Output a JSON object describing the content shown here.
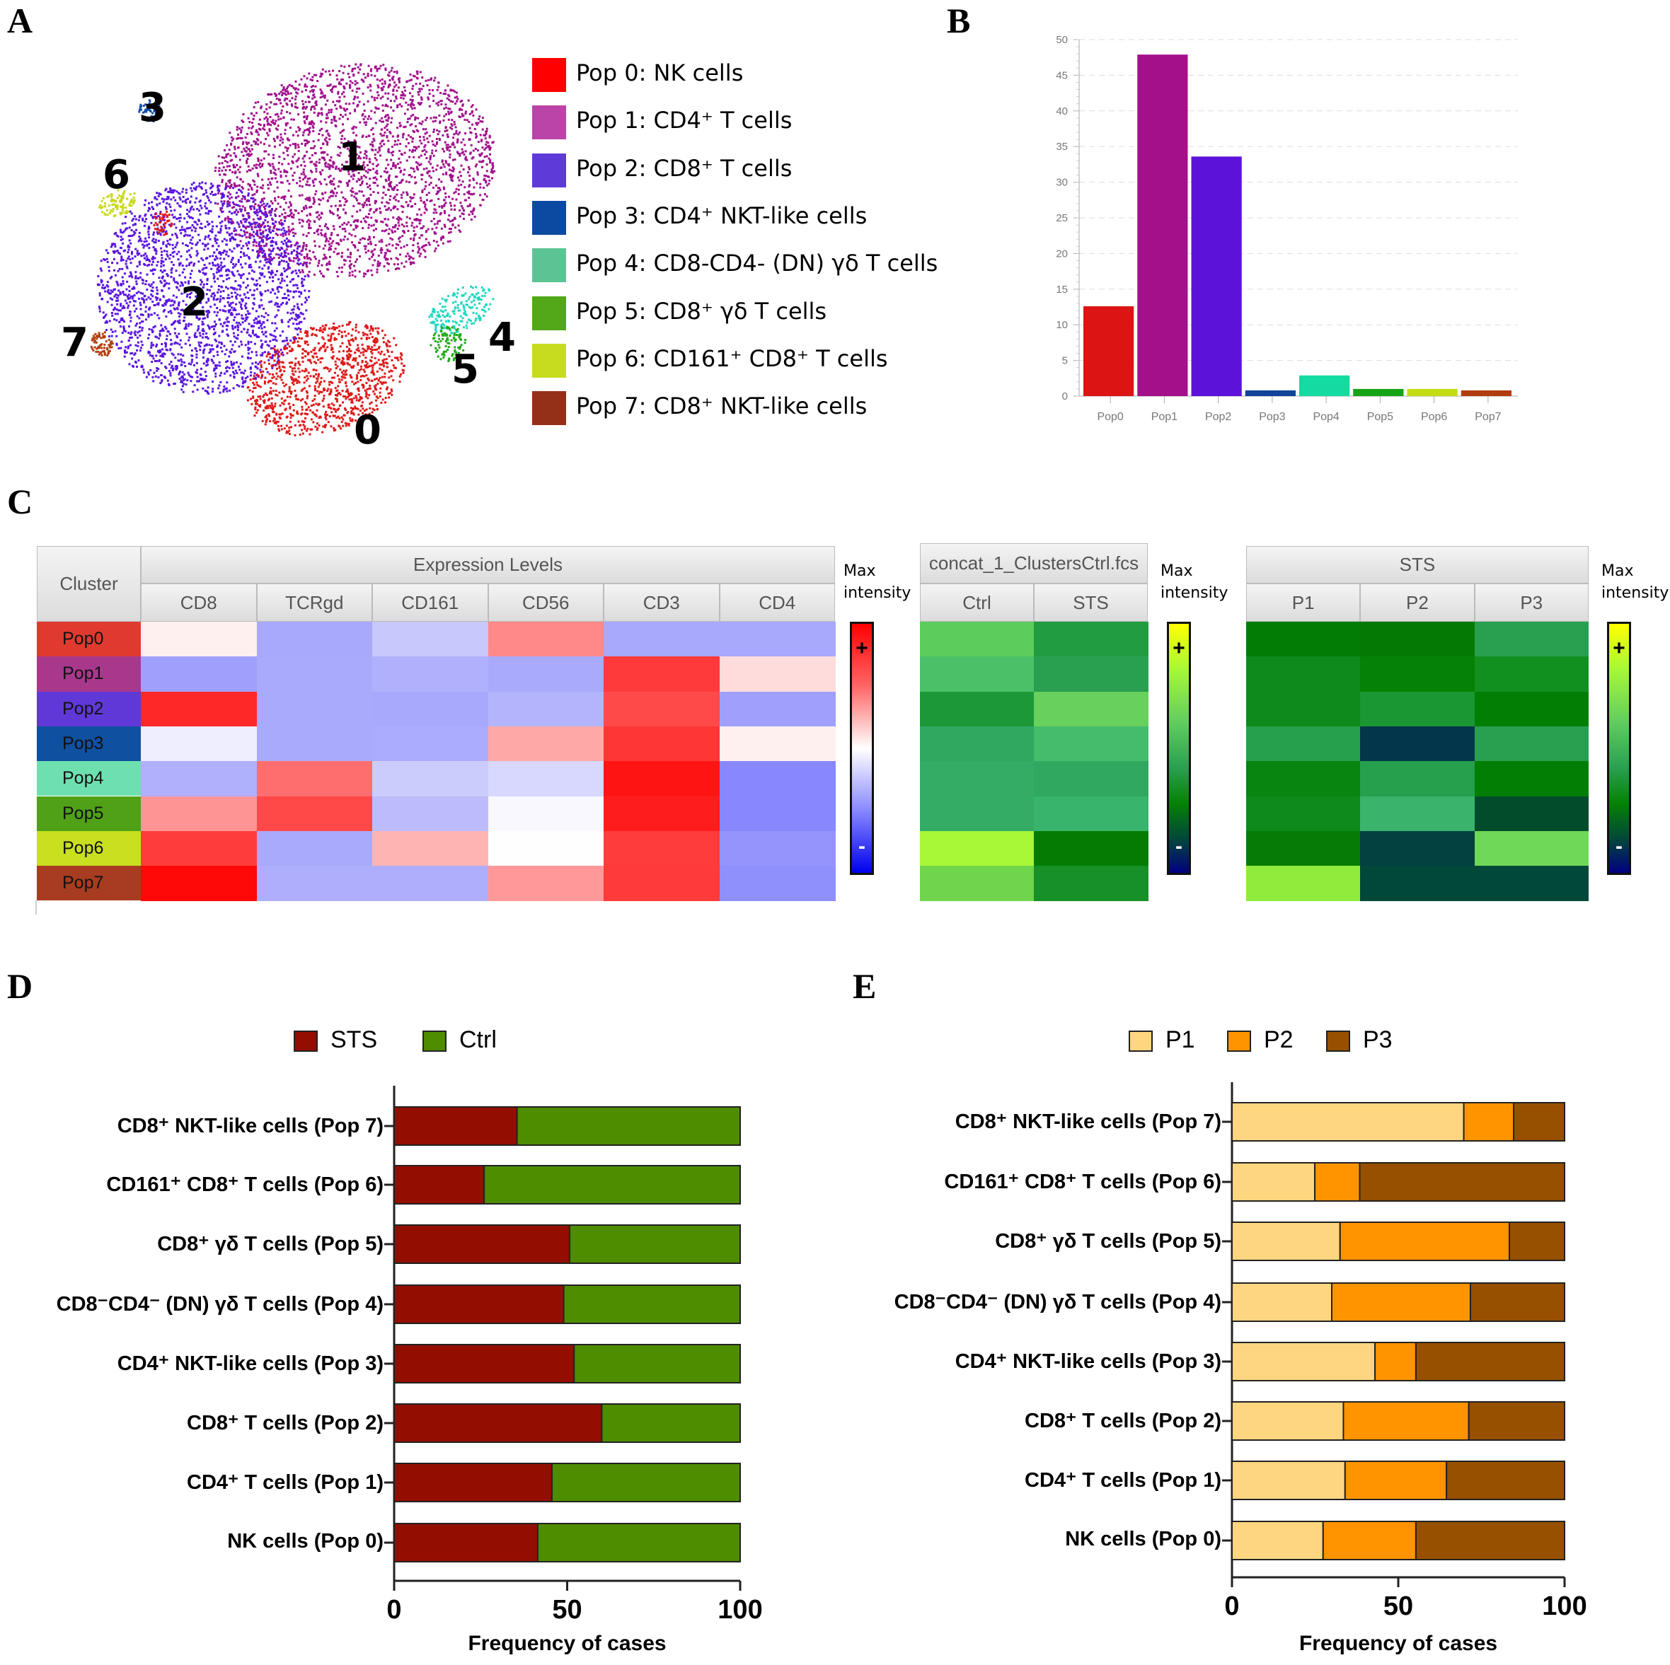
{
  "panels": {
    "a": "A",
    "b": "B",
    "c": "C",
    "d": "D",
    "e": "E"
  },
  "tsne": {
    "labels": [
      "0",
      "1",
      "2",
      "3",
      "4",
      "5",
      "6",
      "7"
    ],
    "legend": [
      {
        "label": "Pop 0: NK cells",
        "color": "#ff0000"
      },
      {
        "label": "Pop 1: CD4⁺ T cells",
        "color": "#bb44a8"
      },
      {
        "label": "Pop 2: CD8⁺ T cells",
        "color": "#5e3bd8"
      },
      {
        "label": "Pop 3: CD4⁺ NKT-like cells",
        "color": "#0b4aa0"
      },
      {
        "label": "Pop 4: CD8-CD4- (DN) γδ T cells",
        "color": "#5cc494"
      },
      {
        "label": "Pop 5: CD8⁺ γδ T cells",
        "color": "#52a818"
      },
      {
        "label": "Pop 6: CD161⁺ CD8⁺ T cells",
        "color": "#c6dc1e"
      },
      {
        "label": "Pop 7: CD8⁺ NKT-like cells",
        "color": "#943018"
      }
    ],
    "plot_colors": [
      "#e01818",
      "#a0108c",
      "#5a14e0",
      "#1450a8",
      "#20d8c0",
      "#20a818",
      "#c8d818",
      "#b04010"
    ]
  },
  "chart_data": [
    {
      "id": "B",
      "type": "bar",
      "title": "",
      "xlabel": "",
      "ylabel": "",
      "categories": [
        "Pop0",
        "Pop1",
        "Pop2",
        "Pop3",
        "Pop4",
        "Pop5",
        "Pop6",
        "Pop7"
      ],
      "values": [
        12.6,
        47.9,
        33.6,
        0.8,
        2.9,
        1.0,
        1.0,
        0.8
      ],
      "colors": [
        "#dc1414",
        "#a4108a",
        "#5c12d8",
        "#10449c",
        "#14dca0",
        "#16a416",
        "#c4dc14",
        "#b03c10"
      ],
      "ylim": [
        0,
        50
      ],
      "yticks": [
        "0",
        "5",
        "10",
        "15",
        "20",
        "25",
        "30",
        "35",
        "40",
        "45",
        "50"
      ],
      "grid": true
    },
    {
      "id": "D",
      "type": "bar",
      "orientation": "horizontal",
      "stacked": true,
      "categories": [
        "CD8⁺ NKT-like cells (Pop 7)",
        "CD161⁺ CD8⁺ T cells (Pop 6)",
        "CD8⁺ γδ T cells (Pop 5)",
        "CD8⁻CD4⁻ (DN) γδ T cells (Pop 4)",
        "CD4⁺ NKT-like cells (Pop 3)",
        "CD8⁺ T cells (Pop 2)",
        "CD4⁺ T cells (Pop 1)",
        "NK cells (Pop 0)"
      ],
      "series": [
        {
          "name": "STS",
          "color": "#940e00",
          "values": [
            35.5,
            26,
            50.7,
            49,
            52,
            60,
            45.6,
            41.5
          ]
        },
        {
          "name": "Ctrl",
          "color": "#4e8c00",
          "values": [
            64.5,
            74,
            49.3,
            51,
            48,
            40,
            54.4,
            58.5
          ]
        }
      ],
      "xlabel": "Frequency of cases",
      "xlim": [
        0,
        100
      ],
      "xticks": [
        "0",
        "50",
        "100"
      ],
      "legend": "top"
    },
    {
      "id": "E",
      "type": "bar",
      "orientation": "horizontal",
      "stacked": true,
      "categories": [
        "CD8⁺ NKT-like cells (Pop 7)",
        "CD161⁺ CD8⁺ T cells (Pop 6)",
        "CD8⁺ γδ T cells (Pop 5)",
        "CD8⁻CD4⁻ (DN) γδ T cells (Pop 4)",
        "CD4⁺ NKT-like cells (Pop 3)",
        "CD8⁺ T cells (Pop 2)",
        "CD4⁺ T cells (Pop 1)",
        "NK cells (Pop 0)"
      ],
      "series": [
        {
          "name": "P1",
          "color": "#ffd680",
          "values": [
            69.7,
            24.9,
            32.5,
            30,
            43,
            33.5,
            34,
            27.4
          ]
        },
        {
          "name": "P2",
          "color": "#ff9400",
          "values": [
            15,
            13.5,
            50.9,
            41.7,
            12.3,
            37.7,
            30.5,
            27.9
          ]
        },
        {
          "name": "P3",
          "color": "#965000",
          "values": [
            15.3,
            61.6,
            16.6,
            28.3,
            44.7,
            28.8,
            35.5,
            44.7
          ]
        }
      ],
      "xlabel": "Frequency of cases",
      "xlim": [
        0,
        100
      ],
      "xticks": [
        "0",
        "50",
        "100"
      ],
      "legend": "top"
    }
  ],
  "heatmaps": {
    "max_intensity": "Max\nintensity",
    "plus": "+",
    "minus": "-",
    "cluster_header": "Cluster",
    "rows": [
      "Pop0",
      "Pop1",
      "Pop2",
      "Pop3",
      "Pop4",
      "Pop5",
      "Pop6",
      "Pop7"
    ],
    "row_colors": [
      "#e03a30",
      "#a8388c",
      "#6038d8",
      "#1050a0",
      "#6ee0b0",
      "#50a018",
      "#c8e020",
      "#a83c20"
    ],
    "expr": {
      "title": "Expression Levels",
      "cols": [
        "CD8",
        "TCRgd",
        "CD161",
        "CD56",
        "CD3",
        "CD4"
      ],
      "colors": [
        [
          "#fff0f0",
          "#a8a8fc",
          "#c8c8fc",
          "#ff8888",
          "#a8a8fc",
          "#a8a8fc"
        ],
        [
          "#a0a0fc",
          "#aaaafc",
          "#b0b0fc",
          "#aaaafc",
          "#ff3a3a",
          "#ffdcdc"
        ],
        [
          "#ff2828",
          "#aaaafc",
          "#a8a8fc",
          "#b4b4fc",
          "#ff4a4a",
          "#a0a0fc"
        ],
        [
          "#eeeefe",
          "#aaaafc",
          "#acacfc",
          "#ffa8a8",
          "#ff3636",
          "#fff0f0"
        ],
        [
          "#b0b0fc",
          "#ff6e6e",
          "#ccccfc",
          "#d8d8fe",
          "#ff1414",
          "#8888fc"
        ],
        [
          "#ff9494",
          "#ff4848",
          "#bcbcfc",
          "#f8f8fe",
          "#ff1c1c",
          "#8888fc"
        ],
        [
          "#ff3c3c",
          "#aaaafc",
          "#ffb4b4",
          "#fefefe",
          "#ff3c3c",
          "#9494fc"
        ],
        [
          "#ff0808",
          "#aeaefc",
          "#aeaefc",
          "#ff9898",
          "#ff3a3a",
          "#9090fc"
        ]
      ]
    },
    "ctrl": {
      "title": "concat_1_ClustersCtrl.fcs",
      "cols": [
        "Ctrl",
        "STS"
      ],
      "colors": [
        [
          "#5ccc5c",
          "#229c40"
        ],
        [
          "#4cc068",
          "#28a050"
        ],
        [
          "#1c9838",
          "#68d05c"
        ],
        [
          "#30a860",
          "#44bc6c"
        ],
        [
          "#34ac66",
          "#30a860"
        ],
        [
          "#34ac66",
          "#38b46c"
        ],
        [
          "#a8f838",
          "#047c04"
        ],
        [
          "#70d44c",
          "#179028"
        ]
      ]
    },
    "sts": {
      "title": "STS",
      "cols": [
        "P1",
        "P2",
        "P3"
      ],
      "colors": [
        [
          "#037c05",
          "#037a03",
          "#28a050"
        ],
        [
          "#0e8a1c",
          "#058205",
          "#119020"
        ],
        [
          "#0e8a1c",
          "#1a9632",
          "#037e05"
        ],
        [
          "#26a04c",
          "#03364a",
          "#28a050"
        ],
        [
          "#088410",
          "#26a04c",
          "#037e05"
        ],
        [
          "#0e8a1c",
          "#3ab46c",
          "#024c2c"
        ],
        [
          "#047c06",
          "#034040",
          "#70d858"
        ],
        [
          "#90ec3c",
          "#024838",
          "#024838"
        ]
      ]
    }
  }
}
